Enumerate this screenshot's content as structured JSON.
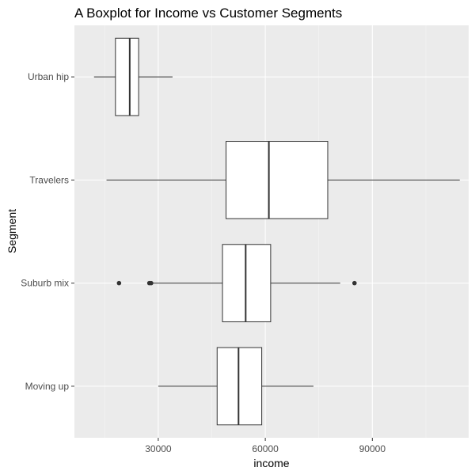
{
  "chart_data": {
    "type": "boxplot",
    "title": "A Boxplot for Income vs Customer Segments",
    "xlabel": "income",
    "ylabel": "Segment",
    "orientation": "horizontal",
    "xlim": [
      6500,
      117000
    ],
    "x_ticks": [
      30000,
      60000,
      90000
    ],
    "x_tick_labels": [
      "30000",
      "60000",
      "90000"
    ],
    "categories": [
      "Urban hip",
      "Travelers",
      "Suburb mix",
      "Moving up"
    ],
    "boxes": [
      {
        "category": "Urban hip",
        "whisker_low": 12000,
        "q1": 18000,
        "median": 22000,
        "q3": 24500,
        "whisker_high": 34000,
        "outliers": []
      },
      {
        "category": "Travelers",
        "whisker_low": 15500,
        "q1": 49000,
        "median": 61000,
        "q3": 77500,
        "whisker_high": 114500,
        "outliers": []
      },
      {
        "category": "Suburb mix",
        "whisker_low": 28500,
        "q1": 48000,
        "median": 54500,
        "q3": 61500,
        "whisker_high": 81000,
        "outliers": [
          19000,
          27500,
          28000,
          85000
        ]
      },
      {
        "category": "Moving up",
        "whisker_low": 30000,
        "q1": 46500,
        "median": 52500,
        "q3": 59000,
        "whisker_high": 73500,
        "outliers": []
      }
    ],
    "grid": true,
    "legend": "none",
    "colors": {
      "panel_background": "#ebebeb",
      "grid_major": "#ffffff",
      "grid_minor": "#f5f5f5",
      "box_fill": "#ffffff",
      "box_stroke": "#333333",
      "outlier": "#333333"
    }
  }
}
